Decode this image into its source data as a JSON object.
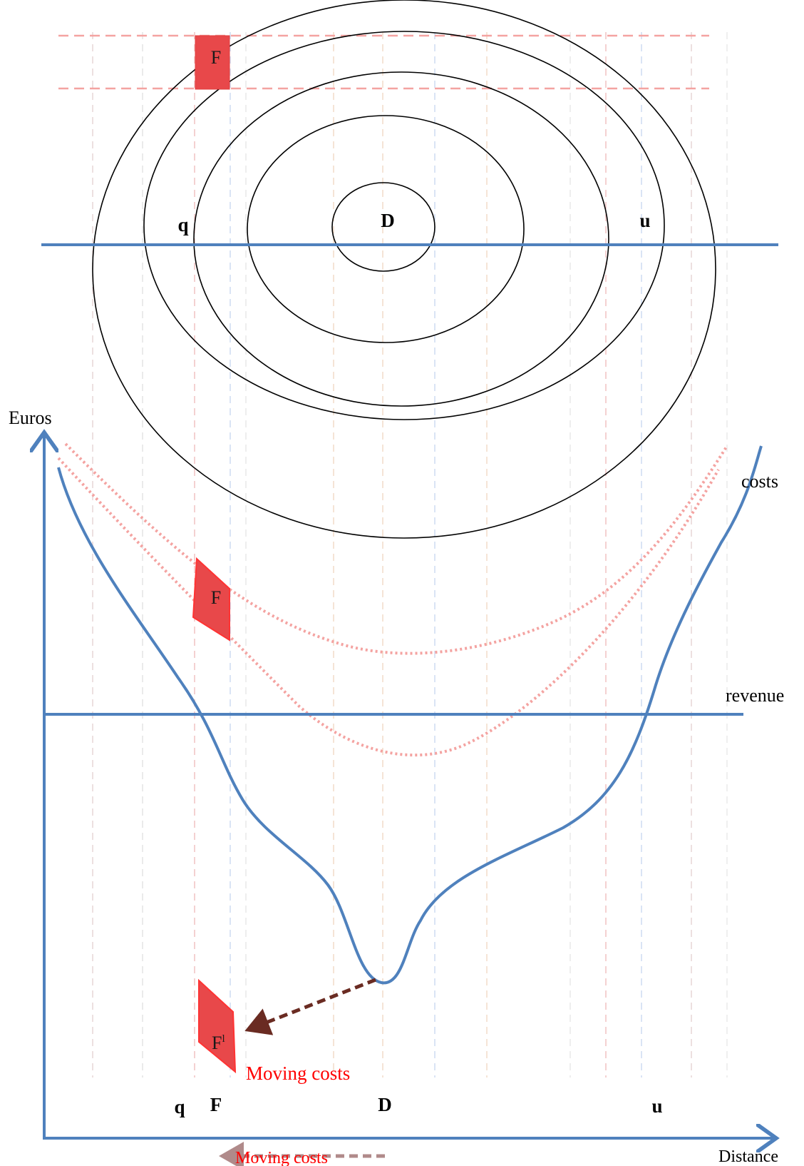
{
  "top_map": {
    "center_label": "D",
    "left_label": "q",
    "right_label": "u",
    "firm_label": "F"
  },
  "chart": {
    "y_axis_label": "Euros",
    "x_axis_label": "Distance",
    "costs_label": "costs",
    "revenue_label": "revenue",
    "firm_label": "F",
    "moved_firm_label": "F",
    "moved_firm_superscript": "l",
    "moving_costs_label": "Moving costs",
    "bottom_moving_costs_label": "Moving costs",
    "x_ticks": {
      "q": "q",
      "F": "F",
      "D": "D",
      "u": "u"
    }
  },
  "colors": {
    "axis_blue": "#4f81bd",
    "firm_red": "#e8484a",
    "firm_edge": "#ff3333",
    "dashed_dark": "#6a2b22",
    "dashed_light_red": "#f4a3a1",
    "annotation_red": "#ff0000",
    "bottom_arrow": "#b08a8a"
  }
}
